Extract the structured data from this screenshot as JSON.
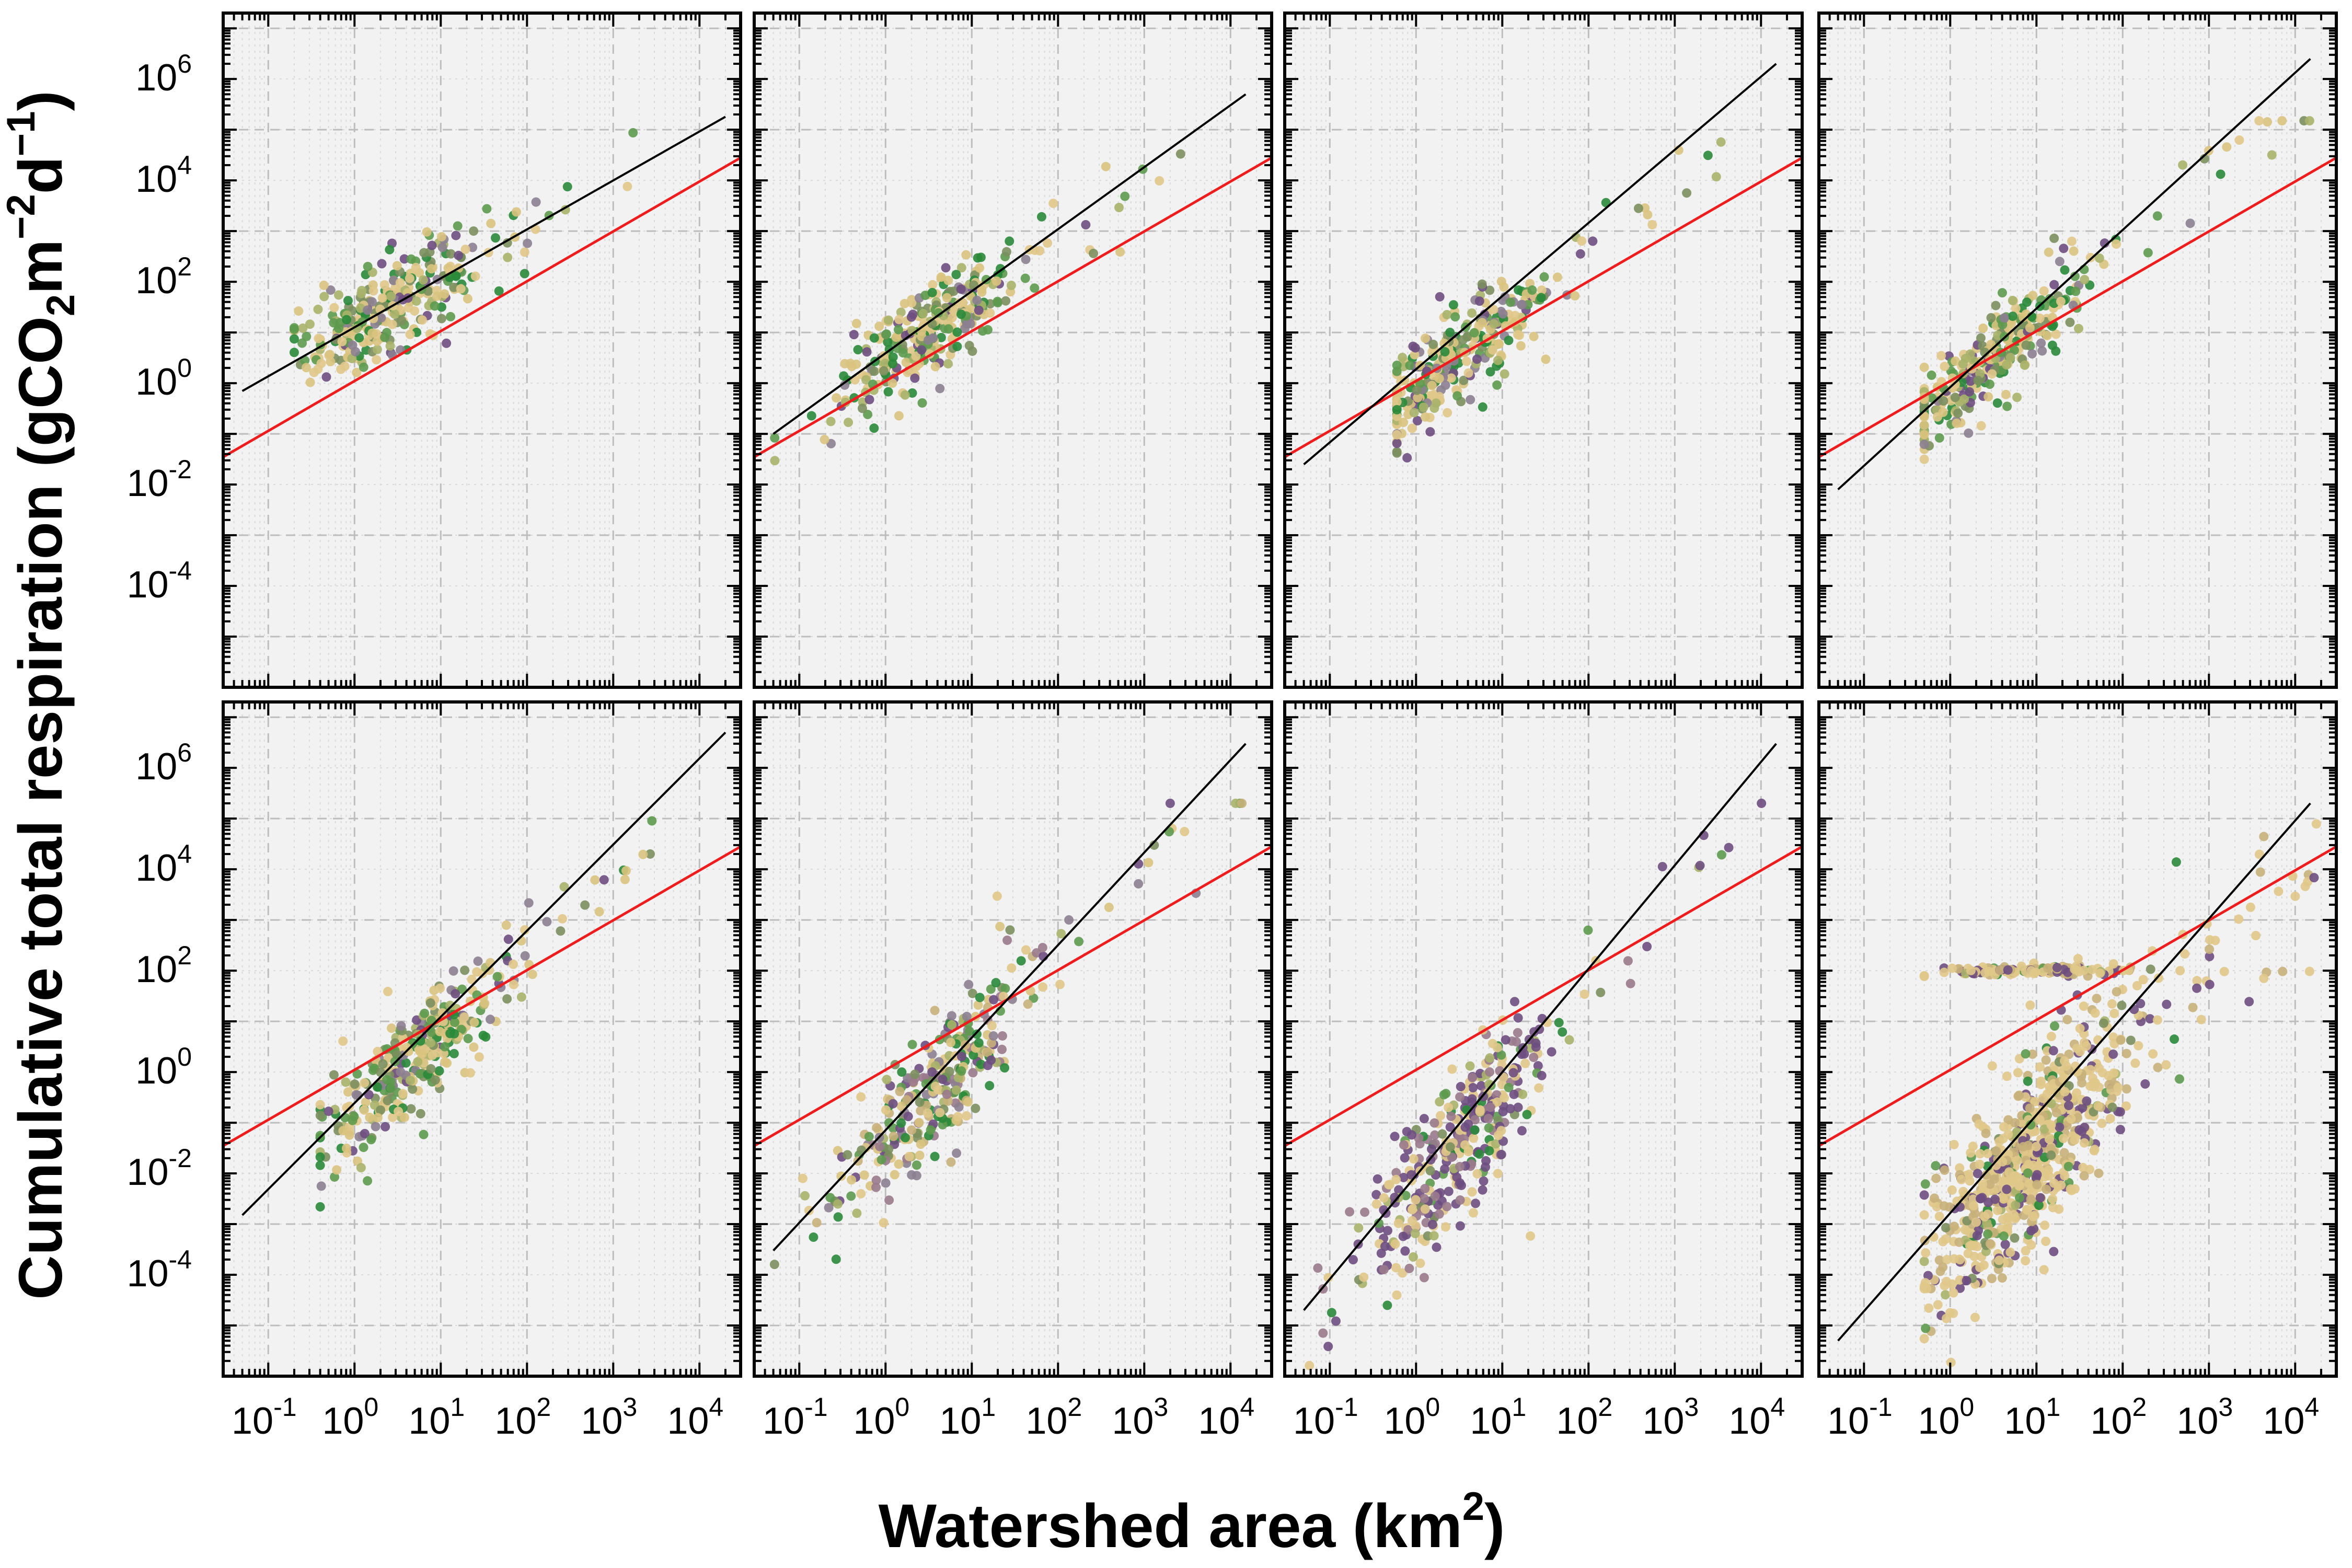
{
  "figure": {
    "xlabel": {
      "text": "Watershed area (km",
      "sup": "2",
      "close": ")"
    },
    "ylabel": {
      "p1": "Cumulative total respiration (gCO",
      "sub2": "2",
      "p2": "m",
      "sup1": "−2",
      "p3": "d",
      "sup2": "−1",
      "p4": ")"
    }
  },
  "colors": {
    "panel_bg": "#f2f2f2",
    "grid_major": "#bdbdbd",
    "grid_minor": "#d9d9d9",
    "fit_line": "#000000",
    "reference_line": "#ee1c1c",
    "point_palette": [
      "#2a8a3a",
      "#5d9a4e",
      "#7b8f5e",
      "#a8b36a",
      "#d9c37e",
      "#e0c88a",
      "#8c7f90",
      "#6e4e80",
      "#9a7a8c",
      "#c8b07a"
    ]
  },
  "chart_data": [
    {
      "type": "scatter",
      "row": 1,
      "col": 1,
      "xscale": "log",
      "yscale": "log",
      "xlim": [
        0.03,
        30000
      ],
      "ylim": [
        1e-06,
        20000000
      ],
      "grid": true,
      "fit_line": {
        "x": [
          0.05,
          20000
        ],
        "y": [
          0.7,
          180000
        ]
      },
      "reference_line": {
        "x": [
          0.03,
          30000
        ],
        "y": [
          0.035,
          28000
        ]
      },
      "points": {
        "x_range": [
          0.2,
          3000
        ],
        "center_x": 2.5,
        "center_y": 30,
        "spread_y": 0.45,
        "max_y": 90000,
        "n": 320,
        "palette_bias": "green-tan"
      }
    },
    {
      "type": "scatter",
      "row": 1,
      "col": 2,
      "xscale": "log",
      "yscale": "log",
      "xlim": [
        0.03,
        30000
      ],
      "ylim": [
        1e-06,
        20000000
      ],
      "grid": true,
      "fit_line": {
        "x": [
          0.05,
          15000
        ],
        "y": [
          0.1,
          500000
        ]
      },
      "reference_line": {
        "x": [
          0.03,
          30000
        ],
        "y": [
          0.035,
          28000
        ]
      },
      "points": {
        "x_range": [
          0.05,
          15000
        ],
        "center_x": 3,
        "center_y": 10,
        "spread_y": 0.45,
        "max_y": 200000,
        "n": 320,
        "palette_bias": "green-tan"
      }
    },
    {
      "type": "scatter",
      "row": 1,
      "col": 3,
      "xscale": "log",
      "yscale": "log",
      "xlim": [
        0.03,
        30000
      ],
      "ylim": [
        1e-06,
        20000000
      ],
      "grid": true,
      "fit_line": {
        "x": [
          0.05,
          15000
        ],
        "y": [
          0.025,
          2000000
        ]
      },
      "reference_line": {
        "x": [
          0.03,
          30000
        ],
        "y": [
          0.035,
          28000
        ]
      },
      "points": {
        "x_range": [
          0.6,
          3500
        ],
        "center_x": 3,
        "center_y": 3,
        "spread_y": 0.45,
        "max_y": 80000,
        "n": 320,
        "palette_bias": "green-tan"
      }
    },
    {
      "type": "scatter",
      "row": 1,
      "col": 4,
      "xscale": "log",
      "yscale": "log",
      "xlim": [
        0.03,
        30000
      ],
      "ylim": [
        1e-06,
        20000000
      ],
      "grid": true,
      "fit_line": {
        "x": [
          0.05,
          15000
        ],
        "y": [
          0.008,
          2500000
        ]
      },
      "reference_line": {
        "x": [
          0.03,
          30000
        ],
        "y": [
          0.035,
          28000
        ]
      },
      "points": {
        "x_range": [
          0.5,
          20000
        ],
        "center_x": 3,
        "center_y": 3,
        "spread_y": 0.45,
        "max_y": 150000,
        "n": 320,
        "palette_bias": "green-tan"
      }
    },
    {
      "type": "scatter",
      "row": 2,
      "col": 1,
      "xscale": "log",
      "yscale": "log",
      "xlim": [
        0.03,
        30000
      ],
      "ylim": [
        1e-06,
        20000000
      ],
      "grid": true,
      "fit_line": {
        "x": [
          0.05,
          20000
        ],
        "y": [
          0.0015,
          5000000
        ]
      },
      "reference_line": {
        "x": [
          0.03,
          30000
        ],
        "y": [
          0.035,
          28000
        ]
      },
      "points": {
        "x_range": [
          0.4,
          3000
        ],
        "center_x": 5,
        "center_y": 2,
        "spread_y": 0.5,
        "max_y": 90000,
        "n": 350,
        "palette_bias": "green-tan"
      }
    },
    {
      "type": "scatter",
      "row": 2,
      "col": 2,
      "xscale": "log",
      "yscale": "log",
      "xlim": [
        0.03,
        30000
      ],
      "ylim": [
        1e-06,
        20000000
      ],
      "grid": true,
      "fit_line": {
        "x": [
          0.05,
          15000
        ],
        "y": [
          0.0003,
          3000000
        ]
      },
      "reference_line": {
        "x": [
          0.03,
          30000
        ],
        "y": [
          0.035,
          28000
        ]
      },
      "points": {
        "x_range": [
          0.05,
          15000
        ],
        "center_x": 4,
        "center_y": 0.5,
        "spread_y": 0.6,
        "max_y": 200000,
        "n": 320,
        "palette_bias": "mixed"
      }
    },
    {
      "type": "scatter",
      "row": 2,
      "col": 3,
      "xscale": "log",
      "yscale": "log",
      "xlim": [
        0.03,
        30000
      ],
      "ylim": [
        1e-06,
        20000000
      ],
      "grid": true,
      "fit_line": {
        "x": [
          0.05,
          15000
        ],
        "y": [
          2e-05,
          3000000
        ]
      },
      "reference_line": {
        "x": [
          0.03,
          30000
        ],
        "y": [
          0.035,
          28000
        ]
      },
      "points": {
        "x_range": [
          0.05,
          15000
        ],
        "center_x": 3,
        "center_y": 0.03,
        "spread_y": 0.7,
        "max_y": 200000,
        "n": 380,
        "palette_bias": "purple-tan"
      }
    },
    {
      "type": "scatter",
      "row": 2,
      "col": 4,
      "xscale": "log",
      "yscale": "log",
      "xlim": [
        0.03,
        30000
      ],
      "ylim": [
        1e-06,
        20000000
      ],
      "grid": true,
      "fit_line": {
        "x": [
          0.05,
          15000
        ],
        "y": [
          5e-06,
          200000
        ]
      },
      "reference_line": {
        "x": [
          0.03,
          30000
        ],
        "y": [
          0.035,
          28000
        ]
      },
      "points": {
        "x_range": [
          0.5,
          20000
        ],
        "center_x": 8,
        "center_y": 0.02,
        "spread_y": 0.9,
        "max_y": 200000,
        "n": 900,
        "palette_bias": "tan-purple",
        "plateau_y": 100
      }
    }
  ],
  "ticks": {
    "x": [
      {
        "base": "10",
        "exp": "-1",
        "v": 0.1
      },
      {
        "base": "10",
        "exp": "0",
        "v": 1
      },
      {
        "base": "10",
        "exp": "1",
        "v": 10
      },
      {
        "base": "10",
        "exp": "2",
        "v": 100
      },
      {
        "base": "10",
        "exp": "3",
        "v": 1000
      },
      {
        "base": "10",
        "exp": "4",
        "v": 10000
      }
    ],
    "y": [
      {
        "base": "10",
        "exp": "6",
        "v": 1000000
      },
      {
        "base": "10",
        "exp": "4",
        "v": 10000
      },
      {
        "base": "10",
        "exp": "2",
        "v": 100
      },
      {
        "base": "10",
        "exp": "0",
        "v": 1
      },
      {
        "base": "10",
        "exp": "-2",
        "v": 0.01
      },
      {
        "base": "10",
        "exp": "-4",
        "v": 0.0001
      }
    ]
  }
}
